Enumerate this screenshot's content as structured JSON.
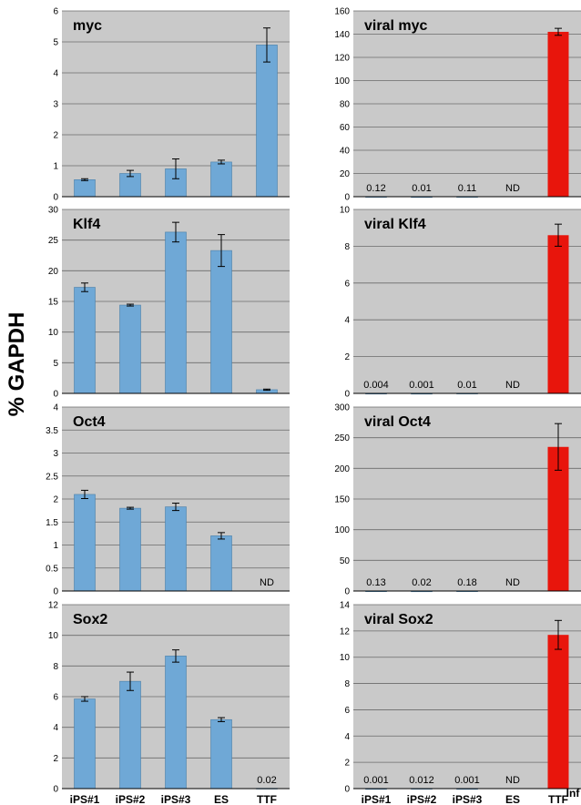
{
  "y_axis_label": "% GAPDH",
  "x_tick_labels": [
    "iPS#1",
    "iPS#2",
    "iPS#3",
    "ES",
    "TTF"
  ],
  "special_label": "Inf",
  "colors": {
    "endogenous_bar": "#6fa8d6",
    "viral_bar": "#e8150c",
    "panel_bg": "#c9c9c9",
    "grid": "#6a6a6a"
  },
  "chart_data": [
    {
      "type": "bar",
      "title": "myc",
      "categories": [
        "iPS#1",
        "iPS#2",
        "iPS#3",
        "ES",
        "TTF"
      ],
      "values": [
        0.55,
        0.75,
        0.9,
        1.12,
        4.9
      ],
      "errors": [
        0.03,
        0.1,
        0.32,
        0.06,
        0.55
      ],
      "value_labels": [
        "",
        "",
        "",
        "",
        ""
      ],
      "ylim": [
        0,
        6
      ],
      "yticks": [
        0,
        1,
        2,
        3,
        4,
        5,
        6
      ],
      "grid": true
    },
    {
      "type": "bar",
      "title": "viral myc",
      "categories": [
        "iPS#1",
        "iPS#2",
        "iPS#3",
        "ES",
        "TTF"
      ],
      "values": [
        0.12,
        0.01,
        0.11,
        0,
        142
      ],
      "errors": [
        0,
        0,
        0,
        0,
        3
      ],
      "value_labels": [
        "0.12",
        "0.01",
        "0.11",
        "ND",
        ""
      ],
      "ylim": [
        0,
        160
      ],
      "yticks": [
        0,
        20,
        40,
        60,
        80,
        100,
        120,
        140,
        160
      ],
      "grid": true
    },
    {
      "type": "bar",
      "title": "Klf4",
      "categories": [
        "iPS#1",
        "iPS#2",
        "iPS#3",
        "ES",
        "TTF"
      ],
      "values": [
        17.3,
        14.4,
        26.3,
        23.3,
        0.6
      ],
      "errors": [
        0.7,
        0.15,
        1.6,
        2.6,
        0.1
      ],
      "value_labels": [
        "",
        "",
        "",
        "",
        ""
      ],
      "ylim": [
        0,
        30
      ],
      "yticks": [
        0,
        5,
        10,
        15,
        20,
        25,
        30
      ],
      "grid": true
    },
    {
      "type": "bar",
      "title": "viral Klf4",
      "categories": [
        "iPS#1",
        "iPS#2",
        "iPS#3",
        "ES",
        "TTF"
      ],
      "values": [
        0.004,
        0.001,
        0.01,
        0,
        8.6
      ],
      "errors": [
        0,
        0,
        0,
        0,
        0.6
      ],
      "value_labels": [
        "0.004",
        "0.001",
        "0.01",
        "ND",
        ""
      ],
      "ylim": [
        0,
        10
      ],
      "yticks": [
        0,
        2,
        4,
        6,
        8,
        10
      ],
      "grid": true
    },
    {
      "type": "bar",
      "title": "Oct4",
      "categories": [
        "iPS#1",
        "iPS#2",
        "iPS#3",
        "ES",
        "TTF"
      ],
      "values": [
        2.1,
        1.8,
        1.83,
        1.2,
        0
      ],
      "errors": [
        0.09,
        0.02,
        0.08,
        0.07,
        0
      ],
      "value_labels": [
        "",
        "",
        "",
        "",
        "ND"
      ],
      "ylim": [
        0,
        4
      ],
      "yticks": [
        0,
        0.5,
        1,
        1.5,
        2,
        2.5,
        3,
        3.5,
        4
      ],
      "grid": true
    },
    {
      "type": "bar",
      "title": "viral Oct4",
      "categories": [
        "iPS#1",
        "iPS#2",
        "iPS#3",
        "ES",
        "TTF"
      ],
      "values": [
        0.13,
        0.02,
        0.18,
        0,
        235
      ],
      "errors": [
        0,
        0,
        0,
        0,
        38
      ],
      "value_labels": [
        "0.13",
        "0.02",
        "0.18",
        "ND",
        ""
      ],
      "ylim": [
        0,
        300
      ],
      "yticks": [
        0,
        50,
        100,
        150,
        200,
        250,
        300
      ],
      "grid": true
    },
    {
      "type": "bar",
      "title": "Sox2",
      "categories": [
        "iPS#1",
        "iPS#2",
        "iPS#3",
        "ES",
        "TTF"
      ],
      "values": [
        5.85,
        7.0,
        8.65,
        4.5,
        0.02
      ],
      "errors": [
        0.15,
        0.6,
        0.4,
        0.13,
        0
      ],
      "value_labels": [
        "",
        "",
        "",
        "",
        "0.02"
      ],
      "ylim": [
        0,
        12
      ],
      "yticks": [
        0,
        2,
        4,
        6,
        8,
        10,
        12
      ],
      "grid": true
    },
    {
      "type": "bar",
      "title": "viral Sox2",
      "categories": [
        "iPS#1",
        "iPS#2",
        "iPS#3",
        "ES",
        "TTF"
      ],
      "values": [
        0.001,
        0.012,
        0.001,
        0,
        11.7
      ],
      "errors": [
        0,
        0,
        0,
        0,
        1.1
      ],
      "value_labels": [
        "0.001",
        "0.012",
        "0.001",
        "ND",
        ""
      ],
      "ylim": [
        0,
        14
      ],
      "yticks": [
        0,
        2,
        4,
        6,
        8,
        10,
        12,
        14
      ],
      "grid": true
    }
  ]
}
